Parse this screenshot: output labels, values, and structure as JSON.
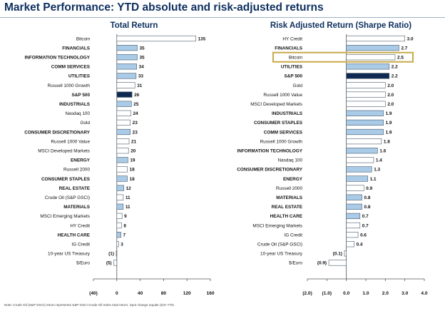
{
  "title": "Market Performance: YTD absolute and risk-adjusted returns",
  "footnote": "Note: Crude Oil (S&P GSCI) return represents S&P GSCI Crude Oil Index total return. Spot change equals (4)% YTD.",
  "colors": {
    "light_blue": "#a9cbe8",
    "navy": "#0f2a52",
    "white_bar": "#ffffff",
    "highlight": "#c8a94a",
    "title": "#0d2f5e"
  },
  "chart_data": [
    {
      "type": "bar",
      "orientation": "horizontal",
      "title": "Total Return",
      "categories": [
        "Bitcoin",
        "FINANCIALS",
        "INFORMATION TECHNOLOGY",
        "COMM SERVICES",
        "UTILITIES",
        "Russell 1000 Growth",
        "S&P 500",
        "INDUSTRIALS",
        "Nasdaq 100",
        "Gold",
        "CONSUMER DISCRETIONARY",
        "Russell 1000 Value",
        "MSCI Developed Markets",
        "ENERGY",
        "Russell 2000",
        "CONSUMER STAPLES",
        "REAL ESTATE",
        "Crude Oil (S&P GSCI)",
        "MATERIALS",
        "MSCI Emerging Markets",
        "HY Credit",
        "HEALTH CARE",
        "IG Credit",
        "10-year US Treasury",
        "$/Euro"
      ],
      "values": [
        135,
        35,
        35,
        34,
        33,
        31,
        26,
        25,
        24,
        23,
        23,
        21,
        20,
        19,
        18,
        18,
        12,
        11,
        11,
        9,
        8,
        7,
        3,
        -1,
        -5
      ],
      "value_labels": [
        "135",
        "35",
        "35",
        "34",
        "33",
        "31",
        "26",
        "25",
        "24",
        "23",
        "23",
        "21",
        "20",
        "19",
        "18",
        "18",
        "12",
        "11",
        "11",
        "9",
        "8",
        "7",
        "3",
        "(1)",
        "(5)"
      ],
      "bar_styles": [
        "white",
        "blue",
        "blue",
        "blue",
        "blue",
        "white",
        "navy",
        "blue",
        "white",
        "white",
        "blue",
        "white",
        "white",
        "blue",
        "white",
        "blue",
        "blue",
        "white",
        "blue",
        "white",
        "white",
        "blue",
        "white",
        "white",
        "white"
      ],
      "xlim": [
        -40,
        160
      ],
      "ticks": [
        -40,
        0,
        40,
        80,
        120,
        160
      ],
      "tick_labels": [
        "(40)",
        "0",
        "40",
        "80",
        "120",
        "160"
      ]
    },
    {
      "type": "bar",
      "orientation": "horizontal",
      "title": "Risk Adjusted Return (Sharpe Ratio)",
      "categories": [
        "HY Credit",
        "FINANCIALS",
        "Bitcoin",
        "UTILITIES",
        "S&P 500",
        "Gold",
        "Russell 1000 Value",
        "MSCI Developed Markets",
        "INDUSTRIALS",
        "CONSUMER STAPLES",
        "COMM SERVICES",
        "Russell 1000 Growth",
        "INFORMATION TECHNOLOGY",
        "Nasdaq 100",
        "CONSUMER DISCRETIONARY",
        "ENERGY",
        "Russell 2000",
        "MATERIALS",
        "REAL ESTATE",
        "HEALTH CARE",
        "MSCI Emerging Markets",
        "IG Credit",
        "Crude Oil (S&P GSCI)",
        "10-year US Treasury",
        "$/Euro"
      ],
      "values": [
        3.0,
        2.7,
        2.5,
        2.2,
        2.2,
        2.0,
        2.0,
        2.0,
        1.9,
        1.9,
        1.9,
        1.8,
        1.6,
        1.4,
        1.3,
        1.1,
        0.9,
        0.8,
        0.8,
        0.7,
        0.7,
        0.6,
        0.4,
        -0.1,
        -0.9
      ],
      "value_labels": [
        "3.0",
        "2.7",
        "2.5",
        "2.2",
        "2.2",
        "2.0",
        "2.0",
        "2.0",
        "1.9",
        "1.9",
        "1.9",
        "1.8",
        "1.6",
        "1.4",
        "1.3",
        "1.1",
        "0.9",
        "0.8",
        "0.8",
        "0.7",
        "0.7",
        "0.6",
        "0.4",
        "(0.1)",
        "(0.9)"
      ],
      "bar_styles": [
        "white",
        "blue",
        "white",
        "blue",
        "navy",
        "white",
        "white",
        "white",
        "blue",
        "blue",
        "blue",
        "white",
        "blue",
        "white",
        "blue",
        "blue",
        "white",
        "blue",
        "blue",
        "blue",
        "white",
        "white",
        "white",
        "white",
        "white"
      ],
      "highlighted_category": "Bitcoin",
      "xlim": [
        -2.0,
        4.0
      ],
      "ticks": [
        -2.0,
        -1.0,
        0.0,
        1.0,
        2.0,
        3.0,
        4.0
      ],
      "tick_labels": [
        "(2.0)",
        "(1.0)",
        "0.0",
        "1.0",
        "2.0",
        "3.0",
        "4.0"
      ]
    }
  ]
}
